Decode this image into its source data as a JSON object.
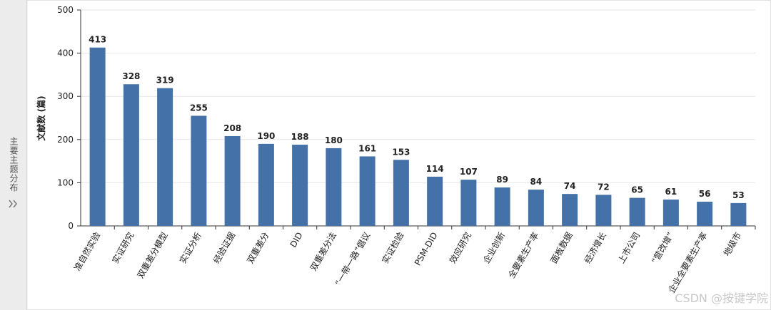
{
  "side_panel": {
    "label": "主要主题分布"
  },
  "watermark": "CSDN @按键学院",
  "chart_data": {
    "type": "bar",
    "y_label": "文献数 (篇)",
    "categories": [
      "准自然实验",
      "实证研究",
      "双重差分模型",
      "实证分析",
      "经验证据",
      "双重差分",
      "DID",
      "双重差分法",
      "“一带一路”倡议",
      "实证检验",
      "PSM-DID",
      "效应研究",
      "企业创新",
      "全要素生产率",
      "面板数据",
      "经济增长",
      "上市公司",
      "“营改增”",
      "企业全要素生产率",
      "地级市"
    ],
    "values": [
      413,
      328,
      319,
      255,
      208,
      190,
      188,
      180,
      161,
      153,
      114,
      107,
      89,
      84,
      74,
      72,
      65,
      61,
      56,
      53
    ],
    "color": "#4472a8",
    "ylim": [
      0,
      500
    ],
    "yticks": [
      0,
      100,
      200,
      300,
      400,
      500
    ],
    "grid": true
  }
}
